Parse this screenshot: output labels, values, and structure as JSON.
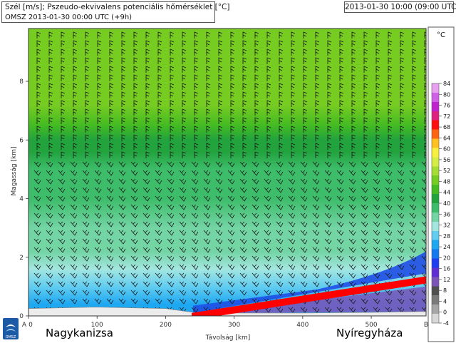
{
  "header": {
    "title_line1": "Szél [m/s]; Pszeudo-ekvivalens potenciális hőmérséklet [°C]",
    "title_line2": "OMSZ 2013-01-30 00:00 UTC (+9h)",
    "valid_time": "2013-01-30 10:00 (09:00 UTC)"
  },
  "logo": {
    "text": "OMSZ",
    "icon": "omsz-logo-icon"
  },
  "cities": {
    "left": "Nagykanizsa",
    "right": "Nyíregyháza"
  },
  "chart_data": {
    "type": "heatmap",
    "xlabel": "Távolság [km]",
    "ylabel": "Magasság [km]",
    "xlim": [
      0,
      580
    ],
    "ylim": [
      0,
      9.8
    ],
    "x_ticks": [
      0,
      100,
      200,
      300,
      400,
      500
    ],
    "x_end_labels": {
      "start": "A",
      "end": "B"
    },
    "y_ticks": [
      0,
      2,
      4,
      6,
      8
    ],
    "colorbar": {
      "unit": "°C",
      "ticks": [
        -4,
        0,
        4,
        8,
        12,
        16,
        20,
        24,
        28,
        32,
        36,
        40,
        44,
        48,
        52,
        56,
        60,
        64,
        68,
        72,
        76,
        80,
        84
      ],
      "colors": [
        "#d8d8d8",
        "#a6a6a6",
        "#7a7a7a",
        "#4f4f4f",
        "#7b55b8",
        "#5f2fd6",
        "#1e3cf0",
        "#1479f0",
        "#1ea8f2",
        "#62cdf0",
        "#a3e6e0",
        "#73d4a4",
        "#3dbd6a",
        "#22a33e",
        "#44bb22",
        "#77cc22",
        "#a6dd33",
        "#d4ee44",
        "#f8f040",
        "#ffc020",
        "#ff6410",
        "#ff1010",
        "#e02080",
        "#c020d0",
        "#d060e8",
        "#e8a0f0"
      ]
    },
    "theta_e_profile": [
      {
        "km": 0,
        "C": 24
      },
      {
        "km": 0.4,
        "C": 26
      },
      {
        "km": 1,
        "C": 29
      },
      {
        "km": 1.6,
        "C": 32
      },
      {
        "km": 2.2,
        "C": 34
      },
      {
        "km": 3,
        "C": 36
      },
      {
        "km": 4,
        "C": 38
      },
      {
        "km": 5,
        "C": 39.5
      },
      {
        "km": 5.6,
        "C": 40.5
      },
      {
        "km": 6,
        "C": 42
      },
      {
        "km": 6.5,
        "C": 45
      },
      {
        "km": 7.2,
        "C": 47
      },
      {
        "km": 8.2,
        "C": 48.5
      },
      {
        "km": 9.8,
        "C": 50
      }
    ],
    "terrain_km": [
      {
        "x": 0,
        "h": 0.25
      },
      {
        "x": 100,
        "h": 0.3
      },
      {
        "x": 200,
        "h": 0.25
      },
      {
        "x": 240,
        "h": 0.12
      },
      {
        "x": 300,
        "h": 0.1
      },
      {
        "x": 400,
        "h": 0.1
      },
      {
        "x": 500,
        "h": 0.12
      },
      {
        "x": 580,
        "h": 0.15
      }
    ],
    "annotation_line": {
      "x_start_km": 238,
      "h_start_km": 0.1,
      "x_end_km": 580,
      "h_end_km": 1.35,
      "color": "#ff0000"
    }
  }
}
